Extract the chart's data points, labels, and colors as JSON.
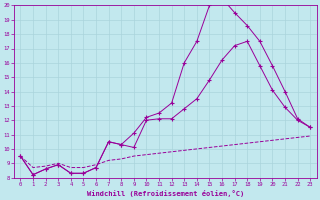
{
  "xlabel": "Windchill (Refroidissement éolien,°C)",
  "xlim": [
    -0.5,
    23.5
  ],
  "ylim": [
    8,
    20
  ],
  "yticks": [
    8,
    9,
    10,
    11,
    12,
    13,
    14,
    15,
    16,
    17,
    18,
    19,
    20
  ],
  "xticks": [
    0,
    1,
    2,
    3,
    4,
    5,
    6,
    7,
    8,
    9,
    10,
    11,
    12,
    13,
    14,
    15,
    16,
    17,
    18,
    19,
    20,
    21,
    22,
    23
  ],
  "line_color": "#990099",
  "bg_color": "#c2e8ee",
  "grid_color": "#aad4dc",
  "line1_x": [
    0,
    1,
    2,
    3,
    4,
    5,
    6,
    7,
    8,
    9,
    10,
    11,
    12,
    13,
    14,
    15,
    16,
    17,
    18,
    19,
    20,
    21,
    22,
    23
  ],
  "line1_y": [
    9.5,
    8.2,
    8.6,
    8.9,
    8.3,
    8.3,
    8.7,
    10.5,
    10.3,
    11.1,
    12.2,
    12.5,
    13.2,
    16.0,
    17.5,
    20.0,
    20.5,
    19.5,
    18.6,
    17.5,
    15.8,
    14.0,
    12.1,
    11.5
  ],
  "line2_x": [
    0,
    1,
    2,
    3,
    4,
    5,
    6,
    7,
    8,
    9,
    10,
    11,
    12,
    13,
    14,
    15,
    16,
    17,
    18,
    19,
    20,
    21,
    22,
    23
  ],
  "line2_y": [
    9.5,
    8.2,
    8.6,
    8.9,
    8.3,
    8.3,
    8.7,
    10.5,
    10.3,
    10.1,
    12.0,
    12.1,
    12.1,
    12.8,
    13.5,
    14.8,
    16.2,
    17.2,
    17.5,
    15.8,
    14.1,
    12.9,
    12.0,
    11.5
  ],
  "line3_x": [
    0,
    1,
    2,
    3,
    4,
    5,
    6,
    7,
    8,
    9,
    10,
    11,
    12,
    13,
    14,
    15,
    16,
    17,
    18,
    19,
    20,
    21,
    22,
    23
  ],
  "line3_y": [
    9.5,
    8.7,
    8.8,
    9.0,
    8.7,
    8.7,
    8.9,
    9.2,
    9.3,
    9.5,
    9.6,
    9.7,
    9.8,
    9.9,
    10.0,
    10.1,
    10.2,
    10.3,
    10.4,
    10.5,
    10.6,
    10.7,
    10.8,
    10.9
  ]
}
